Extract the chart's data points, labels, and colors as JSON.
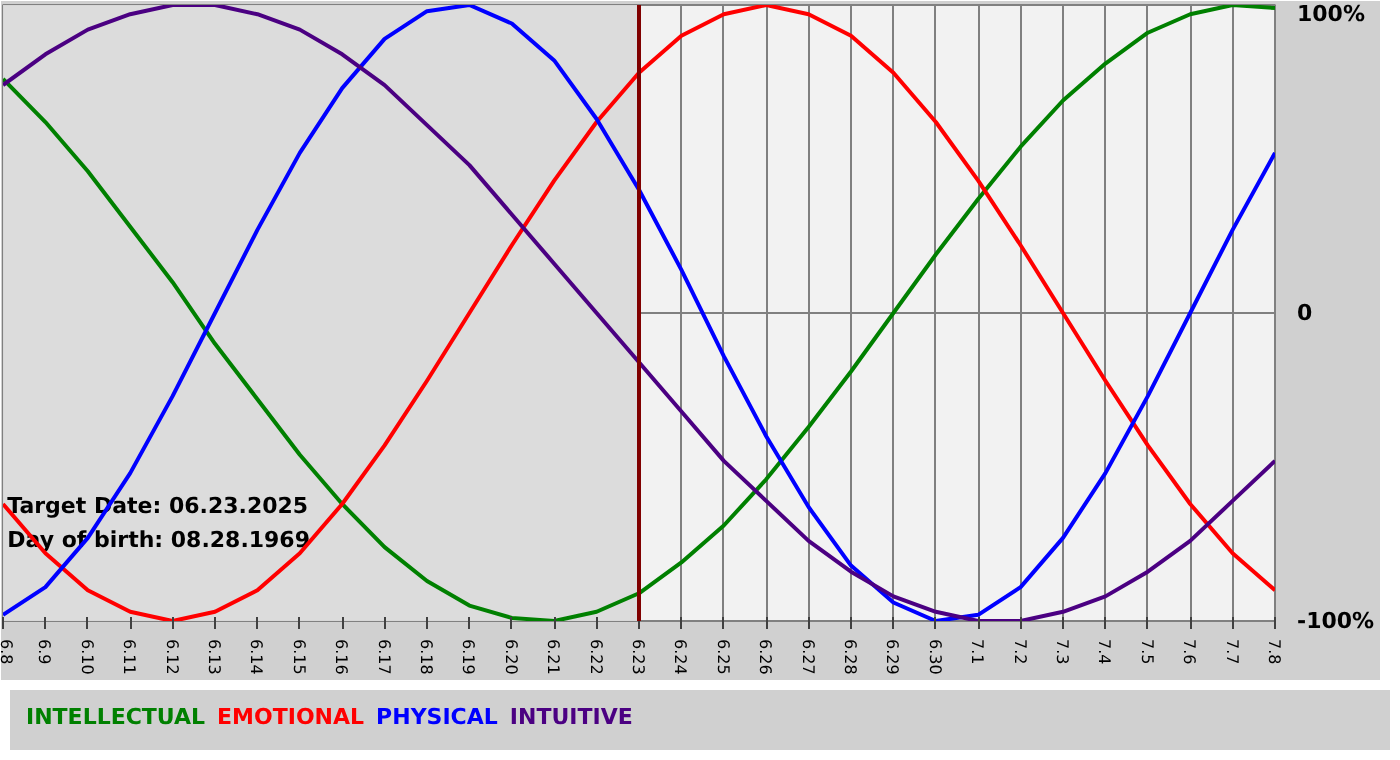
{
  "chart_data": {
    "type": "line",
    "categories": [
      "6.8",
      "6.9",
      "6.10",
      "6.11",
      "6.12",
      "6.13",
      "6.14",
      "6.15",
      "6.16",
      "6.17",
      "6.18",
      "6.19",
      "6.20",
      "6.21",
      "6.22",
      "6.23",
      "6.24",
      "6.25",
      "6.26",
      "6.27",
      "6.28",
      "6.29",
      "6.30",
      "7.1",
      "7.2",
      "7.3",
      "7.4",
      "7.5",
      "7.6",
      "7.7",
      "7.8"
    ],
    "series": [
      {
        "name": "INTELLECTUAL",
        "color": "#008000",
        "values": [
          76,
          62,
          46,
          28,
          10,
          -10,
          -28,
          -46,
          -62,
          -76,
          -87,
          -95,
          -99,
          -100,
          -97,
          -91,
          -81,
          -69,
          -54,
          -37,
          -19,
          0,
          19,
          37,
          54,
          69,
          81,
          91,
          97,
          100,
          99
        ]
      },
      {
        "name": "EMOTIONAL",
        "color": "#ff0000",
        "values": [
          -62,
          -78,
          -90,
          -97,
          -100,
          -97,
          -90,
          -78,
          -62,
          -43,
          -22,
          0,
          22,
          43,
          62,
          78,
          90,
          97,
          100,
          97,
          90,
          78,
          62,
          43,
          22,
          0,
          -22,
          -43,
          -62,
          -78,
          -90
        ]
      },
      {
        "name": "PHYSICAL",
        "color": "#0000ff",
        "values": [
          -98,
          -89,
          -73,
          -52,
          -27,
          0,
          27,
          52,
          73,
          89,
          98,
          100,
          94,
          82,
          63,
          40,
          14,
          -14,
          -40,
          -63,
          -82,
          -94,
          -100,
          -98,
          -89,
          -73,
          -52,
          -27,
          0,
          27,
          52
        ]
      },
      {
        "name": "INTUITIVE",
        "color": "#4b0082",
        "values": [
          74,
          84,
          92,
          97,
          100,
          100,
          97,
          92,
          84,
          74,
          61,
          48,
          32,
          16,
          0,
          -16,
          -32,
          -48,
          -61,
          -74,
          -84,
          -92,
          -97,
          -100,
          -100,
          -97,
          -92,
          -84,
          -74,
          -61,
          -48
        ]
      }
    ],
    "ylim": [
      -100,
      100
    ],
    "yticks": [
      {
        "value": 100,
        "label": "100%"
      },
      0,
      {
        "value": -100,
        "label": "-100%"
      }
    ],
    "ref_lines": [
      {
        "axis": "x",
        "value": "6.23",
        "color": "#800000"
      }
    ],
    "bands": [
      {
        "axis": "x",
        "from": "6.8",
        "to": "6.23",
        "color": "#dcdcdc"
      }
    ],
    "annotations": [
      "Target Date: 06.23.2025",
      "Day of birth: 08.28.1969"
    ],
    "grid": true,
    "legend": "bottom",
    "marker": "none",
    "line_style": "solid"
  }
}
